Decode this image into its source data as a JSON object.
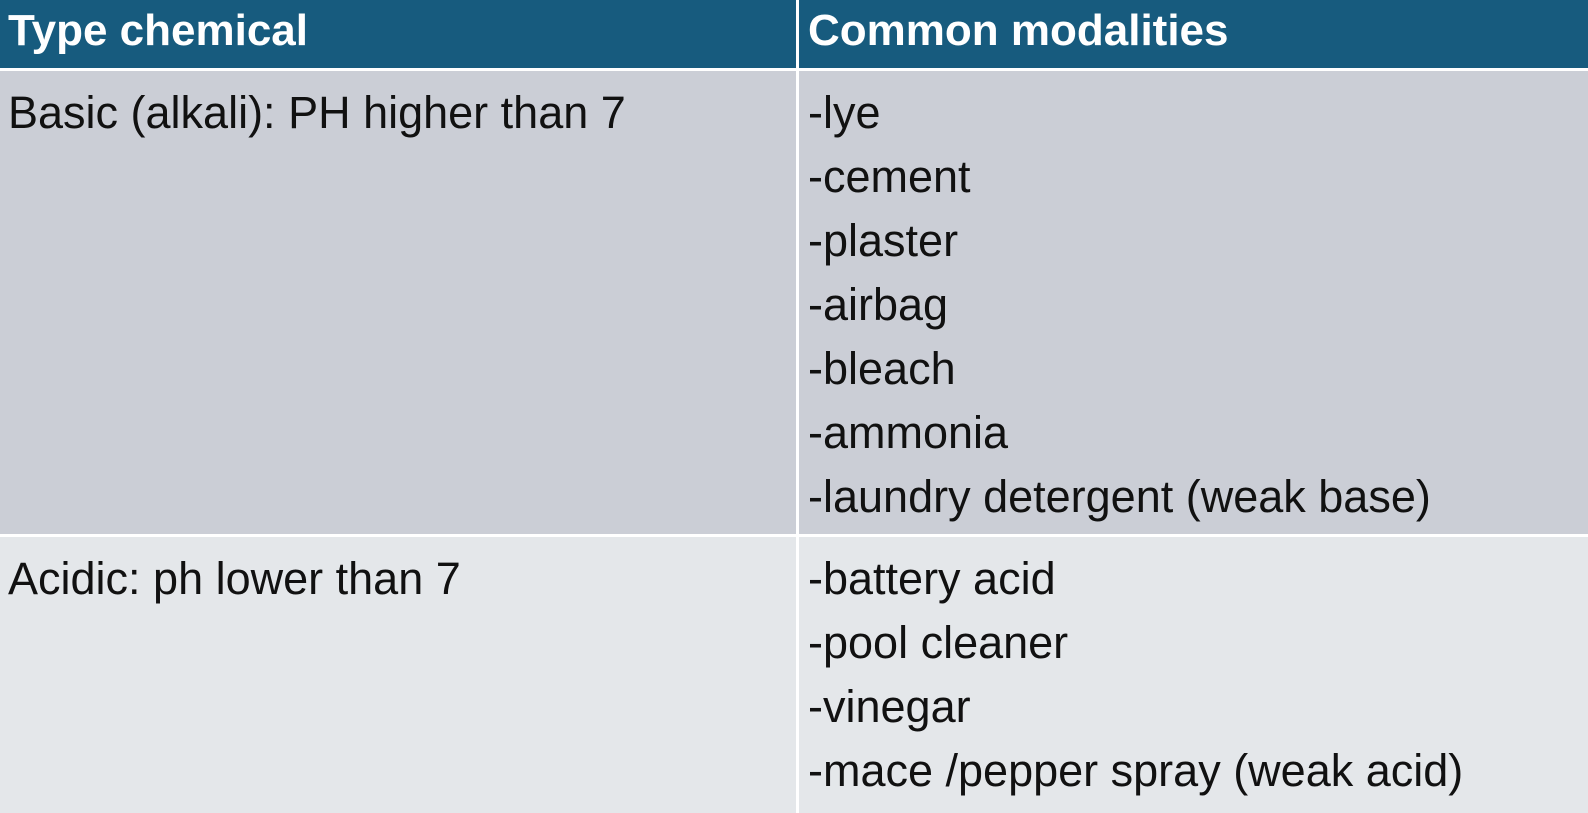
{
  "table": {
    "headers": [
      "Type chemical",
      "Common modalities"
    ],
    "rows": [
      {
        "type": "Basic (alkali): PH higher than 7",
        "modalities": [
          "-lye",
          "-cement",
          "-plaster",
          "-airbag",
          "-bleach",
          "-ammonia",
          "-laundry detergent (weak  base)"
        ]
      },
      {
        "type": "Acidic: ph lower than 7",
        "modalities": [
          "-battery acid",
          "-pool cleaner",
          "-vinegar",
          "-mace /pepper spray (weak acid)"
        ]
      }
    ]
  },
  "colors": {
    "header_bg": "#175b7e",
    "row1_bg": "#cbced6",
    "row2_bg": "#e4e7ea",
    "header_text": "#ffffff"
  }
}
